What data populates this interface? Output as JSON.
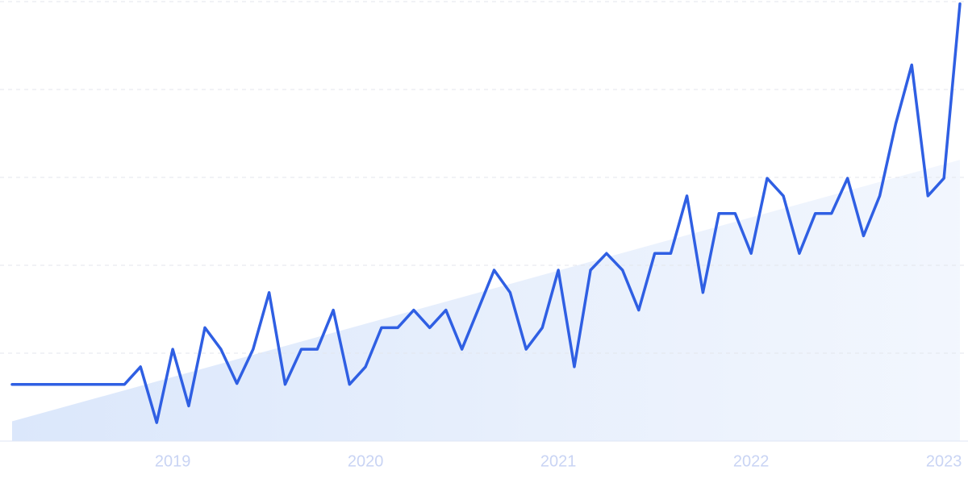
{
  "chart_data": {
    "type": "line",
    "x": [
      2018.167,
      2018.25,
      2018.333,
      2018.417,
      2018.5,
      2018.583,
      2018.667,
      2018.75,
      2018.833,
      2018.917,
      2019.0,
      2019.083,
      2019.167,
      2019.25,
      2019.333,
      2019.417,
      2019.5,
      2019.583,
      2019.667,
      2019.75,
      2019.833,
      2019.917,
      2020.0,
      2020.083,
      2020.167,
      2020.25,
      2020.333,
      2020.417,
      2020.5,
      2020.583,
      2020.667,
      2020.75,
      2020.833,
      2020.917,
      2021.0,
      2021.083,
      2021.167,
      2021.25,
      2021.333,
      2021.417,
      2021.5,
      2021.583,
      2021.667,
      2021.75,
      2021.833,
      2021.917,
      2022.0,
      2022.083,
      2022.167,
      2022.25,
      2022.333,
      2022.417,
      2022.5,
      2022.583,
      2022.667,
      2022.75,
      2022.833,
      2022.917,
      2023.0,
      2023.083
    ],
    "series": [
      {
        "color": "#2f5fe3",
        "values": [
          12.9,
          12.9,
          12.9,
          12.9,
          12.9,
          12.9,
          12.9,
          12.9,
          16.9,
          4.2,
          20.9,
          8,
          25.8,
          20.9,
          13.1,
          20.9,
          33.8,
          12.9,
          20.9,
          20.9,
          29.8,
          12.9,
          16.9,
          25.8,
          25.8,
          29.8,
          25.8,
          29.8,
          20.9,
          29.8,
          38.9,
          33.8,
          20.9,
          25.8,
          38.9,
          16.9,
          38.9,
          42.7,
          38.9,
          29.8,
          42.7,
          42.7,
          55.8,
          33.8,
          51.8,
          51.8,
          42.7,
          59.8,
          55.8,
          42.7,
          51.8,
          51.8,
          59.8,
          46.7,
          55.8,
          72.2,
          85.6,
          55.8,
          59.8,
          99.5
        ]
      }
    ],
    "trendline": {
      "x": [
        2018.167,
        2023.083
      ],
      "values": [
        4.5,
        64
      ],
      "color": "#dbe7fb"
    },
    "xlim": [
      2018.167,
      2023.083
    ],
    "xticks": [
      2019,
      2020,
      2021,
      2022,
      2023
    ],
    "ylim": [
      0,
      100
    ],
    "yticks": [
      0,
      20,
      40,
      60,
      80,
      100
    ],
    "grid": true
  }
}
